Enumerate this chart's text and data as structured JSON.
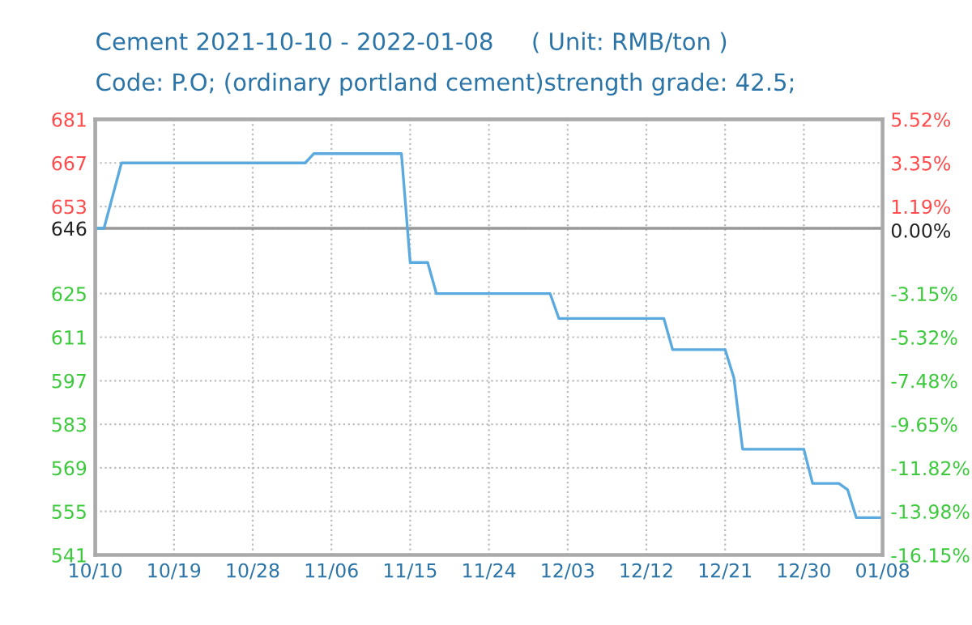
{
  "chart_data": {
    "type": "line",
    "title": "Cement 2021-10-10 - 2022-01-08     ( Unit: RMB/ton )",
    "subtitle": "Code: P.O; (ordinary portland cement)strength grade: 42.5;",
    "x": [
      "2021-10-10",
      "2021-10-11",
      "2021-10-13",
      "2021-11-03",
      "2021-11-04",
      "2021-11-14",
      "2021-11-15",
      "2021-11-17",
      "2021-11-18",
      "2021-12-01",
      "2021-12-02",
      "2021-12-14",
      "2021-12-15",
      "2021-12-21",
      "2021-12-22",
      "2021-12-23",
      "2021-12-30",
      "2021-12-31",
      "2022-01-03",
      "2022-01-04",
      "2022-01-05",
      "2022-01-08"
    ],
    "series": [
      {
        "color": "#5aaae0",
        "values": [
          646,
          646,
          667,
          667,
          670,
          670,
          635,
          635,
          625,
          625,
          617,
          617,
          607,
          607,
          598,
          575,
          575,
          564,
          564,
          562,
          553,
          553
        ]
      }
    ],
    "xlim": [
      "2021-10-10",
      "2022-01-08"
    ],
    "xticks": [
      {
        "value": "2021-10-10",
        "label": "10/10"
      },
      {
        "value": "2021-10-19",
        "label": "10/19"
      },
      {
        "value": "2021-10-28",
        "label": "10/28"
      },
      {
        "value": "2021-11-06",
        "label": "11/06"
      },
      {
        "value": "2021-11-15",
        "label": "11/15"
      },
      {
        "value": "2021-11-24",
        "label": "11/24"
      },
      {
        "value": "2021-12-03",
        "label": "12/03"
      },
      {
        "value": "2021-12-12",
        "label": "12/12"
      },
      {
        "value": "2021-12-21",
        "label": "12/21"
      },
      {
        "value": "2021-12-30",
        "label": "12/30"
      },
      {
        "value": "2022-01-08",
        "label": "01/08"
      }
    ],
    "ylim": [
      541,
      681
    ],
    "yticks": [
      541,
      555,
      569,
      583,
      597,
      611,
      625,
      646,
      653,
      667,
      681
    ],
    "y2lim": [
      -16.15,
      5.52
    ],
    "y2ticks": [
      {
        "value": -16.15,
        "label": "-16.15%"
      },
      {
        "value": -13.98,
        "label": "-13.98%"
      },
      {
        "value": -11.82,
        "label": "-11.82%"
      },
      {
        "value": -9.65,
        "label": "-9.65%"
      },
      {
        "value": -7.48,
        "label": "-7.48%"
      },
      {
        "value": -5.32,
        "label": "-5.32%"
      },
      {
        "value": -3.15,
        "label": "-3.15%"
      },
      {
        "value": 0,
        "label": "0.00%"
      },
      {
        "value": 1.19,
        "label": "1.19%"
      },
      {
        "value": 3.35,
        "label": "3.35%"
      },
      {
        "value": 5.52,
        "label": "5.52%"
      }
    ],
    "ref_lines": [
      {
        "axis": "y",
        "value": 646,
        "color": "#999999"
      }
    ],
    "grid": true,
    "marker": "none",
    "line_style": "solid"
  }
}
